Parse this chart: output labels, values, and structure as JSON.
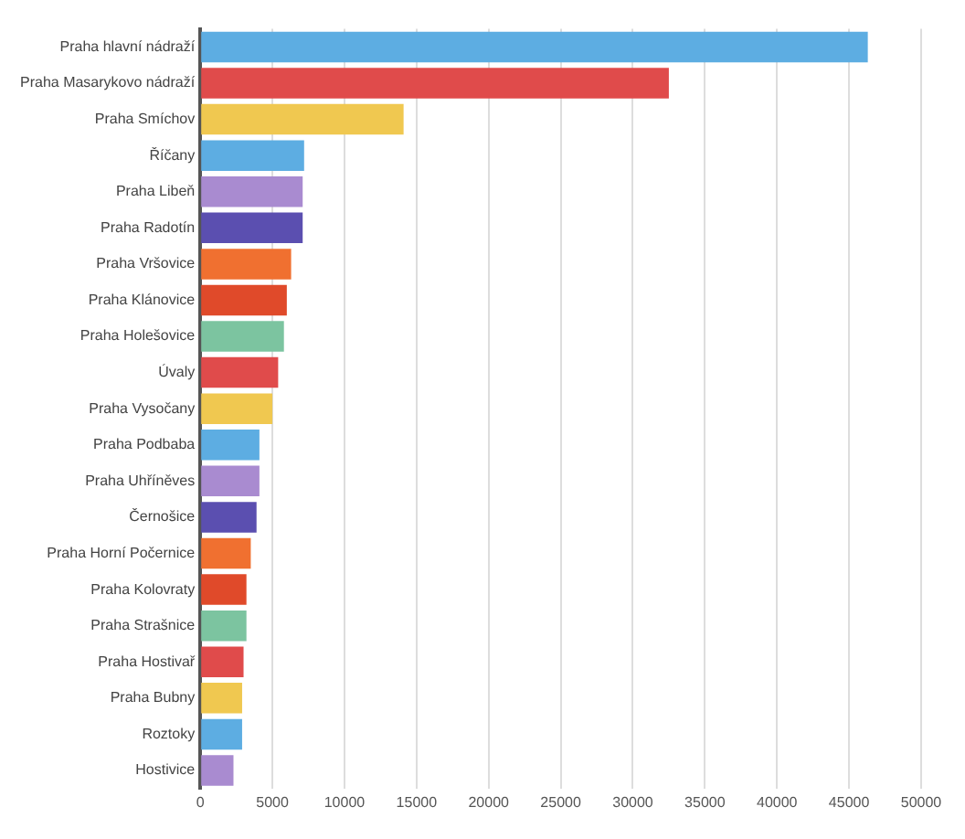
{
  "chart_data": {
    "type": "bar",
    "orientation": "horizontal",
    "categories": [
      "Praha hlavní nádraží",
      "Praha Masarykovo nádraží",
      "Praha Smíchov",
      "Říčany",
      "Praha Libeň",
      "Praha Radotín",
      "Praha Vršovice",
      "Praha Klánovice",
      "Praha Holešovice",
      "Úvaly",
      "Praha Vysočany",
      "Praha Podbaba",
      "Praha Uhříněves",
      "Černošice",
      "Praha Horní Počernice",
      "Praha Kolovraty",
      "Praha Strašnice",
      "Praha Hostivař",
      "Praha Bubny",
      "Roztoky",
      "Hostivice"
    ],
    "values": [
      46300,
      32500,
      14100,
      7200,
      7100,
      7100,
      6300,
      6000,
      5800,
      5400,
      5000,
      4100,
      4100,
      3900,
      3500,
      3200,
      3200,
      3000,
      2900,
      2900,
      2300
    ],
    "colors": [
      "#5dade2",
      "#e04b4b",
      "#f0c850",
      "#5dade2",
      "#a98bd0",
      "#5b4fb0",
      "#f07030",
      "#e04a2a",
      "#7cc4a0",
      "#e04b4b",
      "#f0c850",
      "#5dade2",
      "#a98bd0",
      "#5b4fb0",
      "#f07030",
      "#e04a2a",
      "#7cc4a0",
      "#e04b4b",
      "#f0c850",
      "#5dade2",
      "#a98bd0"
    ],
    "xlim": [
      0,
      50000
    ],
    "xticks": [
      0,
      5000,
      10000,
      15000,
      20000,
      25000,
      30000,
      35000,
      40000,
      45000,
      50000
    ],
    "grid": "x",
    "legend": false
  }
}
